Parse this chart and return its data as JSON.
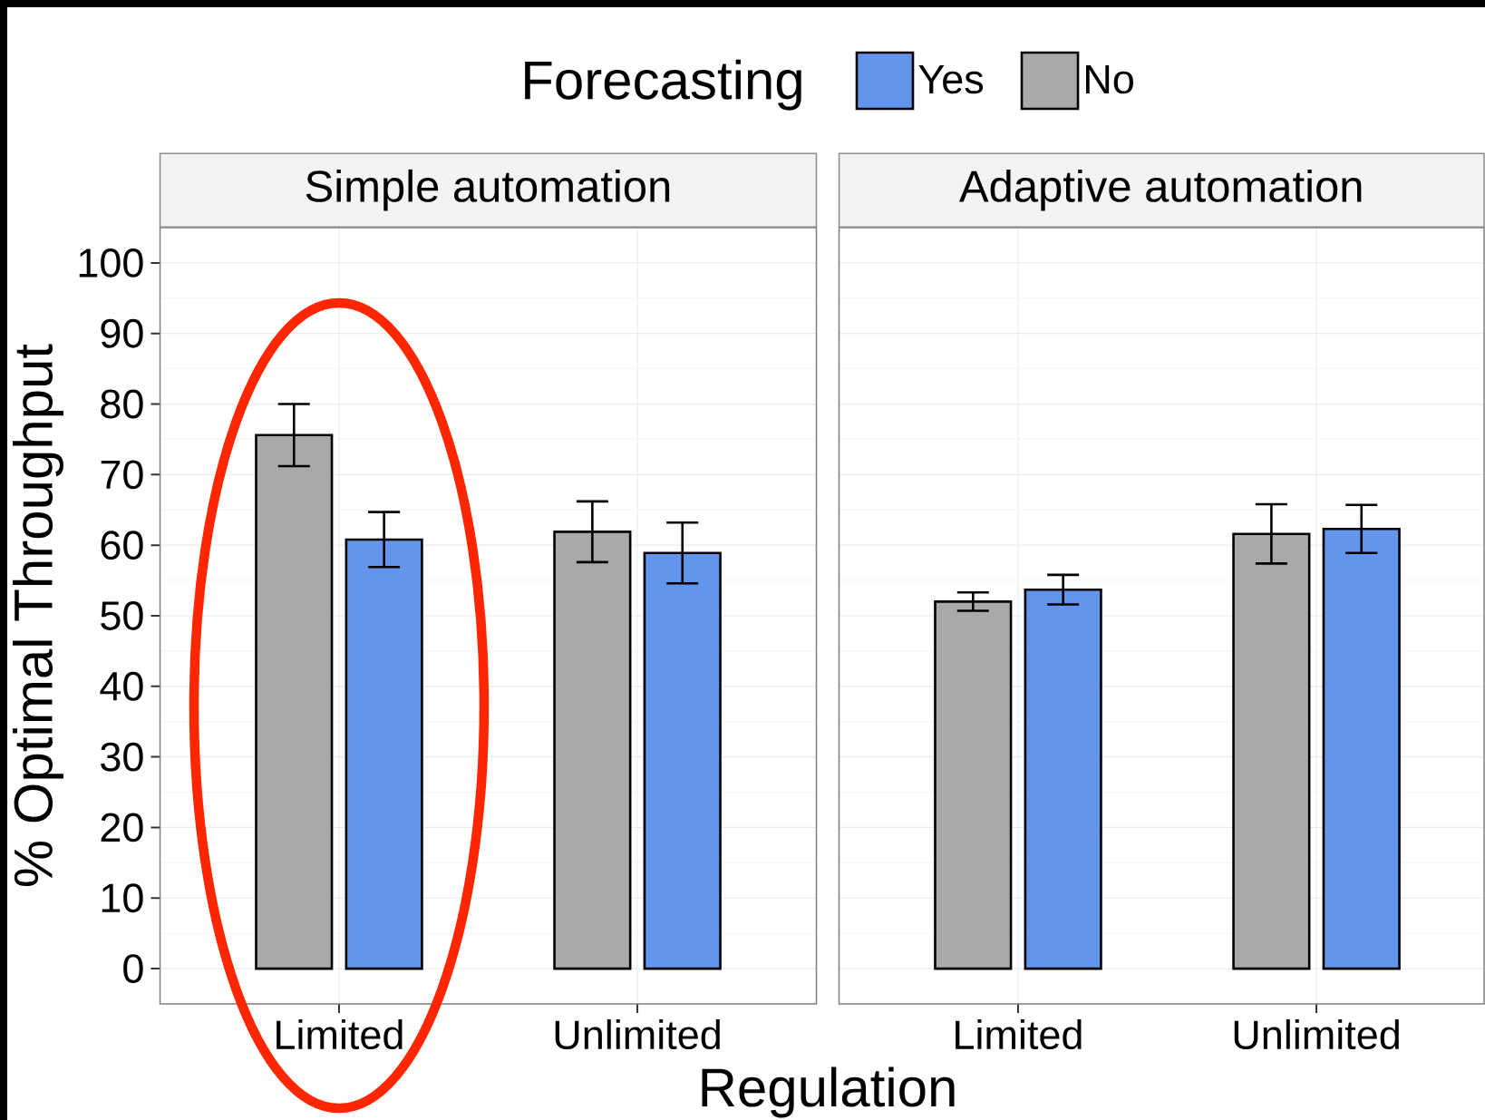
{
  "chart_data": [
    {
      "type": "bar",
      "title": "Simple automation",
      "xlabel": "Regulation",
      "ylabel": "% Optimal Throughput",
      "legend_title": "Forecasting",
      "legend": "top",
      "categories": [
        "Limited",
        "Unlimited"
      ],
      "series": [
        {
          "name": "No",
          "color": "#a9a9a9",
          "values": [
            75.6,
            61.9
          ],
          "errors": [
            4.4,
            4.3
          ]
        },
        {
          "name": "Yes",
          "color": "#6495ed",
          "values": [
            60.8,
            58.9
          ],
          "errors": [
            3.9,
            4.3
          ]
        }
      ],
      "ylim": [
        -5,
        105
      ],
      "yticks": [
        0,
        10,
        20,
        30,
        40,
        50,
        60,
        70,
        80,
        90,
        100
      ],
      "grid": true
    },
    {
      "type": "bar",
      "title": "Adaptive automation",
      "categories": [
        "Limited",
        "Unlimited"
      ],
      "series": [
        {
          "color": "#a9a9a9",
          "values": [
            52,
            61.6
          ],
          "errors": [
            1.3,
            4.2
          ]
        },
        {
          "color": "#6495ed",
          "values": [
            53.7,
            62.3
          ],
          "errors": [
            2.1,
            3.4
          ]
        }
      ],
      "ylim": [
        -5,
        105
      ],
      "yticks": [
        0,
        10,
        20,
        30,
        40,
        50,
        60,
        70,
        80,
        90,
        100
      ],
      "grid": true,
      "tick_labels": "x"
    }
  ]
}
